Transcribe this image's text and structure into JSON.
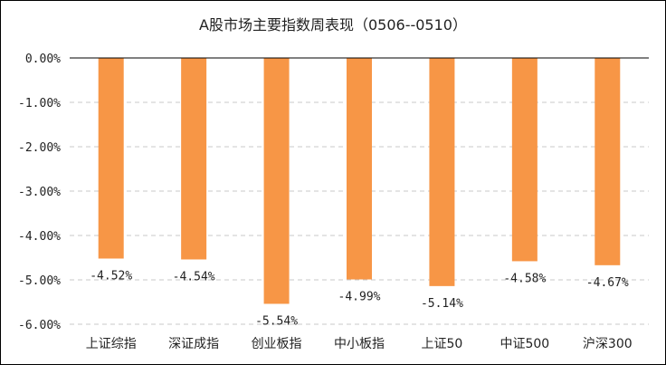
{
  "chart_data": {
    "type": "bar",
    "title": "A股市场主要指数周表现（0506--0510）",
    "categories": [
      "上证综指",
      "深证成指",
      "创业板指",
      "中小板指",
      "上证50",
      "中证500",
      "沪深300"
    ],
    "values": [
      -4.52,
      -4.54,
      -5.54,
      -4.99,
      -5.14,
      -4.58,
      -4.67
    ],
    "data_labels": [
      "-4.52%",
      "-4.54%",
      "-5.54%",
      "-4.99%",
      "-5.14%",
      "-4.58%",
      "-4.67%"
    ],
    "y_ticks": [
      "0.00%",
      "-1.00%",
      "-2.00%",
      "-3.00%",
      "-4.00%",
      "-5.00%",
      "-6.00%"
    ],
    "ylim": [
      -6,
      0
    ],
    "grid": true,
    "legend": "none",
    "bar_color": "#F79646"
  }
}
